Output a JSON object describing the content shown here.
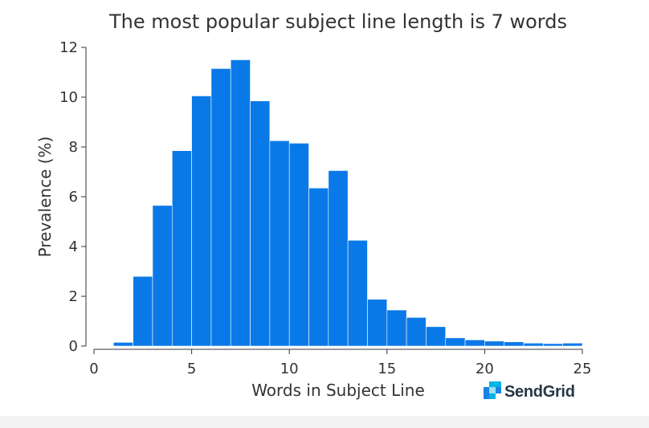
{
  "chart_data": {
    "type": "bar",
    "title": "The most popular subject line length is 7 words",
    "xlabel": "Words in Subject Line",
    "ylabel": "Prevalence (%)",
    "xlim": [
      0,
      25
    ],
    "ylim": [
      0,
      12
    ],
    "xticks": [
      0,
      5,
      10,
      15,
      20,
      25
    ],
    "yticks": [
      0,
      2,
      4,
      6,
      8,
      10,
      12
    ],
    "bin_width": 1,
    "bins": [
      1,
      2,
      3,
      4,
      5,
      6,
      7,
      8,
      9,
      10,
      11,
      12,
      13,
      14,
      15,
      16,
      17,
      18,
      19,
      20,
      21,
      22,
      23,
      24
    ],
    "values": [
      0.15,
      2.8,
      5.65,
      7.85,
      10.05,
      11.15,
      11.5,
      9.85,
      8.25,
      8.15,
      6.35,
      7.05,
      4.25,
      1.88,
      1.45,
      1.15,
      0.78,
      0.33,
      0.25,
      0.2,
      0.17,
      0.12,
      0.1,
      0.12
    ],
    "bar_color": "#0a79e8",
    "grid": false,
    "legend": "none"
  },
  "brand": {
    "name": "SendGrid",
    "logo_icon": "sendgrid-logo-icon",
    "logo_colors": [
      "#1a82e2",
      "#99e1f4",
      "#00b3e3"
    ]
  }
}
